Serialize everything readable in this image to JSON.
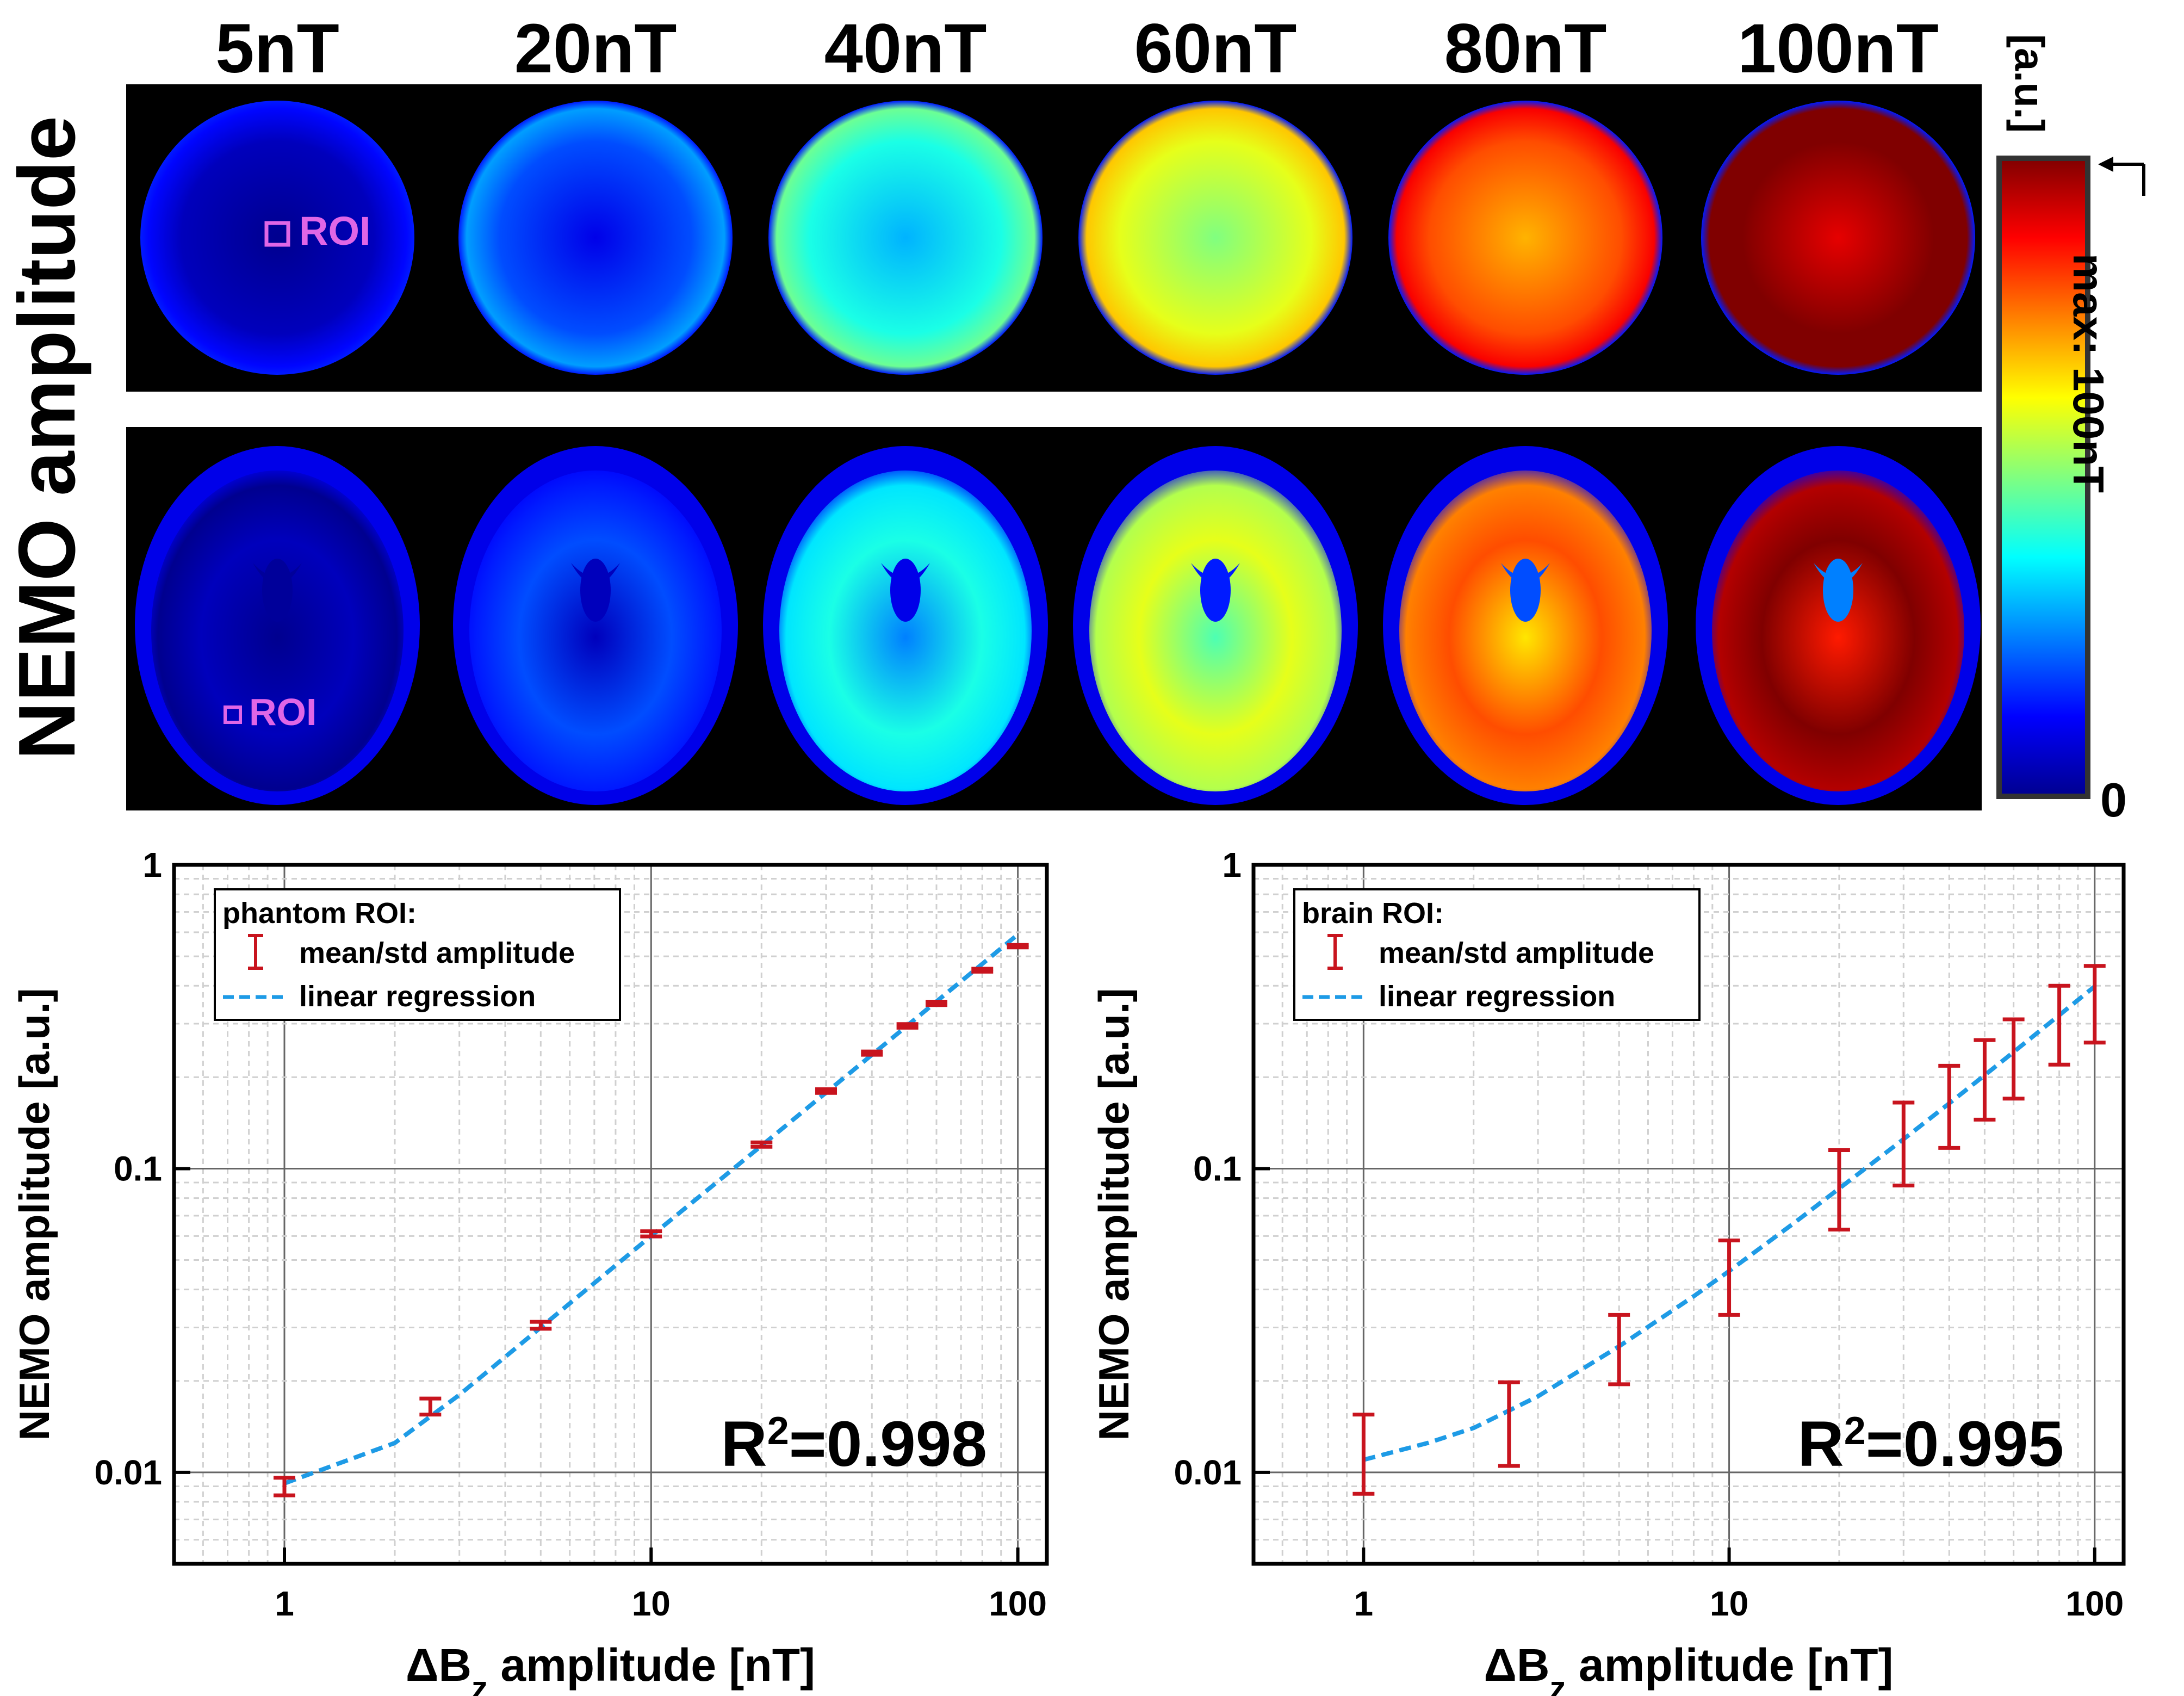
{
  "figure": {
    "row_label": "NEMO amplitude",
    "columns": [
      "5nT",
      "20nT",
      "40nT",
      "60nT",
      "80nT",
      "100nT"
    ],
    "roi_label": "ROI",
    "colorbar": {
      "unit": "[a.u.]",
      "max_label": "max: 100nT",
      "min_label": "0",
      "colormap": [
        "#00008f",
        "#0000ff",
        "#0080ff",
        "#00ffff",
        "#80ff80",
        "#ffff00",
        "#ff8000",
        "#ff0000",
        "#800000"
      ]
    },
    "phantom_fill_levels": [
      0.05,
      0.2,
      0.4,
      0.6,
      0.8,
      1.0
    ],
    "brain_fill_levels": [
      0.05,
      0.2,
      0.4,
      0.6,
      0.8,
      1.0
    ]
  },
  "chart_data": [
    {
      "type": "scatter",
      "id": "phantom",
      "xscale": "log",
      "yscale": "log",
      "xlim": [
        0.5,
        120
      ],
      "ylim": [
        0.005,
        1
      ],
      "xticks": [
        1,
        10,
        100
      ],
      "xtick_labels": [
        "1",
        "10",
        "100"
      ],
      "yticks": [
        0.01,
        0.1,
        1
      ],
      "ytick_labels": [
        "0.01",
        "0.1",
        "1"
      ],
      "xlabel": "ΔB",
      "xlabel_sub": "z",
      "xlabel_rest": " amplitude [nT]",
      "ylabel": "NEMO amplitude [a.u.]",
      "grid": true,
      "legend": {
        "title": "phantom ROI:",
        "entries": [
          "mean/std amplitude",
          "linear regression"
        ],
        "position": "top-left"
      },
      "annotation": {
        "prefix": "R",
        "sup": "2",
        "value": "=0.998"
      },
      "series": [
        {
          "name": "mean/std amplitude",
          "x": [
            1,
            2.5,
            5,
            10,
            20,
            30,
            40,
            50,
            60,
            80,
            100
          ],
          "y": [
            0.009,
            0.0165,
            0.0305,
            0.061,
            0.12,
            0.18,
            0.24,
            0.295,
            0.35,
            0.45,
            0.54
          ],
          "std": [
            0.0006,
            0.001,
            0.0008,
            0.0012,
            0.002,
            0.0025,
            0.003,
            0.004,
            0.0045,
            0.005,
            0.005
          ],
          "color": "#c8141e"
        },
        {
          "name": "linear regression",
          "x": [
            1,
            2,
            3,
            5,
            8,
            10,
            15,
            20,
            30,
            40,
            50,
            60,
            80,
            100
          ],
          "y": [
            0.0092,
            0.0125,
            0.018,
            0.03,
            0.048,
            0.06,
            0.0895,
            0.119,
            0.178,
            0.237,
            0.296,
            0.355,
            0.472,
            0.59
          ],
          "color": "#1e9be6"
        }
      ]
    },
    {
      "type": "scatter",
      "id": "brain",
      "xscale": "log",
      "yscale": "log",
      "xlim": [
        0.5,
        120
      ],
      "ylim": [
        0.005,
        1
      ],
      "xticks": [
        1,
        10,
        100
      ],
      "xtick_labels": [
        "1",
        "10",
        "100"
      ],
      "yticks": [
        0.01,
        0.1,
        1
      ],
      "ytick_labels": [
        "0.01",
        "0.1",
        "1"
      ],
      "xlabel": "ΔB",
      "xlabel_sub": "z",
      "xlabel_rest": " amplitude [nT]",
      "ylabel": "NEMO amplitude [a.u.]",
      "grid": true,
      "legend": {
        "title": "brain ROI:",
        "entries": [
          "mean/std amplitude",
          "linear regression"
        ],
        "position": "top-left"
      },
      "annotation": {
        "prefix": "R",
        "sup": "2",
        "value": "=0.995"
      },
      "series": [
        {
          "name": "mean/std amplitude",
          "x": [
            1,
            2.5,
            5,
            10,
            20,
            30,
            40,
            50,
            60,
            80,
            100
          ],
          "y": [
            0.012,
            0.0145,
            0.0255,
            0.046,
            0.087,
            0.125,
            0.162,
            0.2,
            0.235,
            0.304,
            0.36
          ],
          "low": [
            0.0085,
            0.0105,
            0.0195,
            0.033,
            0.063,
            0.088,
            0.117,
            0.145,
            0.17,
            0.22,
            0.26
          ],
          "high": [
            0.0155,
            0.0198,
            0.033,
            0.058,
            0.115,
            0.165,
            0.218,
            0.265,
            0.31,
            0.4,
            0.465
          ],
          "color": "#c8141e"
        },
        {
          "name": "linear regression",
          "x": [
            1,
            1.5,
            2,
            3,
            5,
            8,
            10,
            15,
            20,
            30,
            40,
            50,
            60,
            80,
            100
          ],
          "y": [
            0.011,
            0.0125,
            0.014,
            0.0178,
            0.026,
            0.038,
            0.046,
            0.066,
            0.086,
            0.125,
            0.164,
            0.203,
            0.242,
            0.32,
            0.398
          ],
          "color": "#1e9be6"
        }
      ]
    }
  ]
}
